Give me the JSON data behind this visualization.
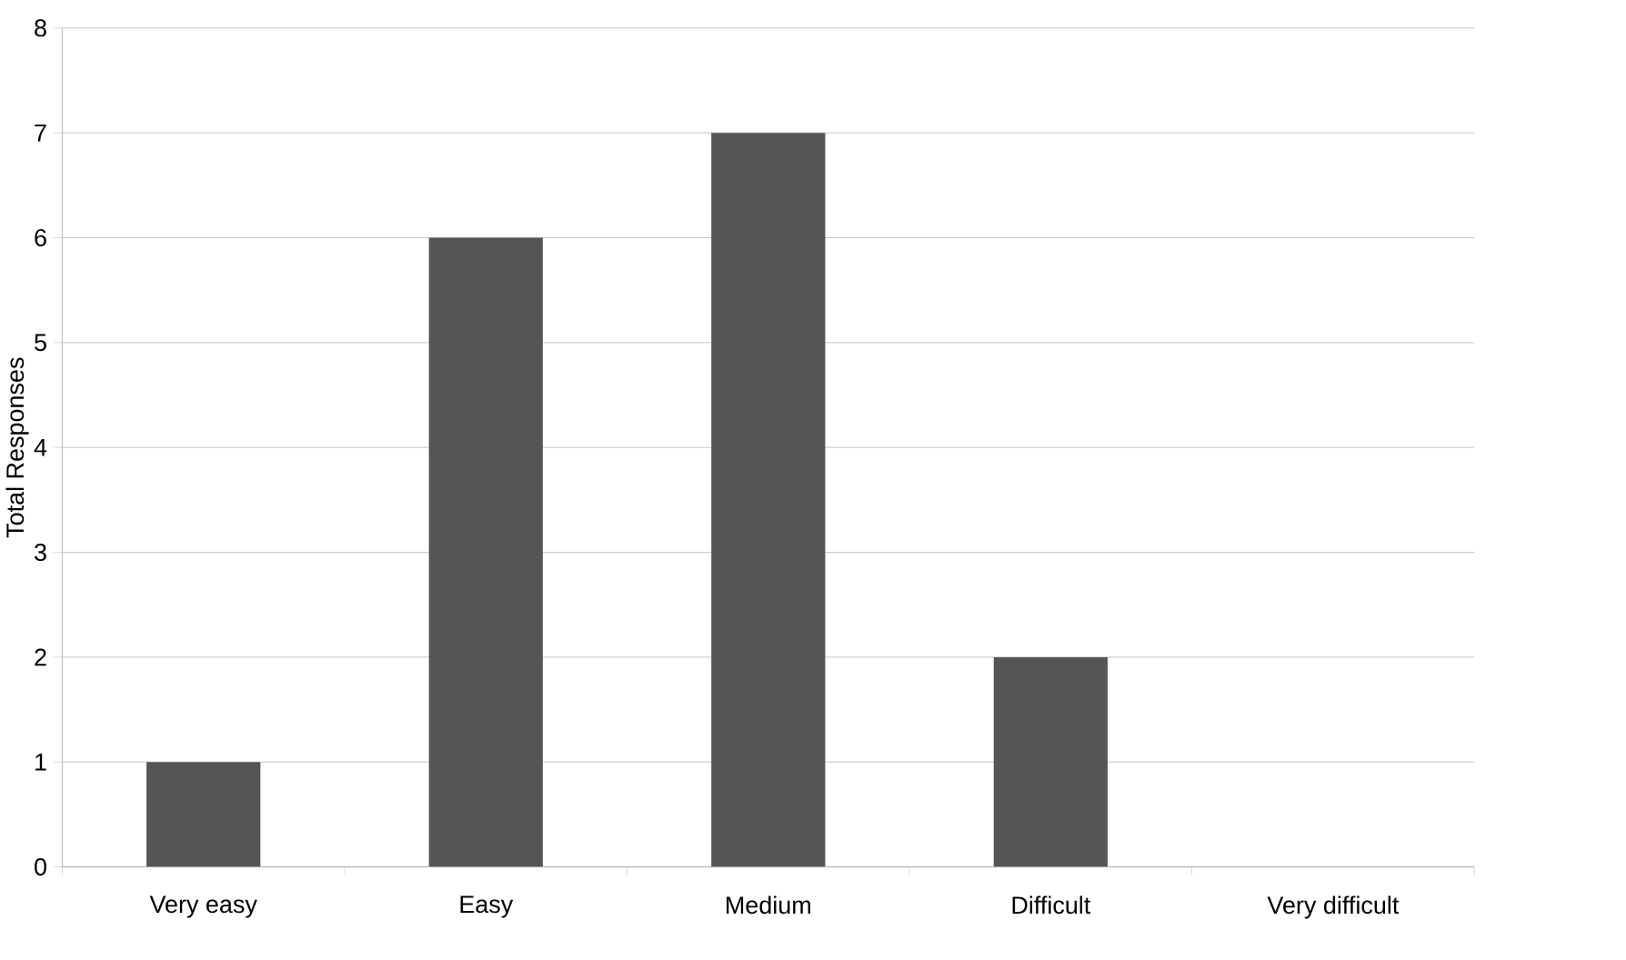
{
  "chart_data": {
    "type": "bar",
    "ylabel": "Total Responses",
    "categories": [
      "Very easy",
      "Easy",
      "Medium",
      "Difficult",
      "Very difficult"
    ],
    "values": [
      1,
      6,
      7,
      2,
      0
    ],
    "color": "#555555",
    "ylim": [
      0,
      8
    ],
    "yticks": [
      0,
      1,
      2,
      3,
      4,
      5,
      6,
      7,
      8
    ],
    "grid": "y"
  }
}
